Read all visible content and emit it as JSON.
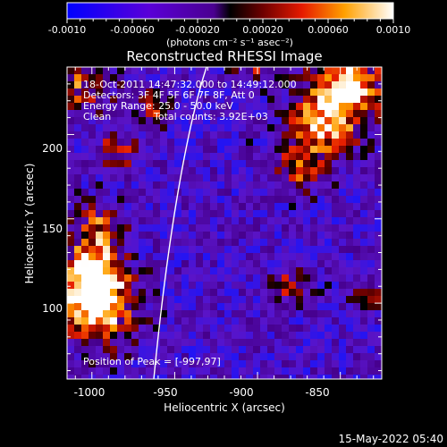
{
  "colorbar": {
    "tick_labels": [
      "-0.0010",
      "-0.00060",
      "-0.00020",
      "0.00020",
      "0.00060",
      "0.0010"
    ],
    "range": [
      -0.001,
      0.001
    ],
    "units_label": "(photons cm⁻² s⁻¹ asec⁻²)"
  },
  "title": "Reconstructed RHESSI Image",
  "info": {
    "time": "18-Oct-2011 14:47:32.000 to 14:49:12.000",
    "detectors": "Detectors: 3F 4F 5F 6F 7F 8F, Att 0",
    "energy": "Energy Range: 25.0 - 50.0 keV",
    "clean": "Clean",
    "total_counts": "Total counts: 3.92E+03"
  },
  "peak": "Position of Peak = [-997,97]",
  "x_axis": {
    "label": "Heliocentric X (arcsec)",
    "range": [
      -1015,
      -825
    ],
    "ticks": [
      -1000,
      -950,
      -900,
      -850
    ],
    "tick_labels": [
      "-1000",
      "-950",
      "-900",
      "-850"
    ]
  },
  "y_axis": {
    "label": "Heliocentric Y (arcsec)",
    "range": [
      55,
      240
    ],
    "ticks": [
      100,
      150,
      200
    ],
    "tick_labels": [
      "100",
      "150",
      "200"
    ]
  },
  "footer_date": "15-May-2022 05:40",
  "colors": {
    "axes": "#ffffff",
    "limb": "#ffffff",
    "background": "#000000"
  }
}
